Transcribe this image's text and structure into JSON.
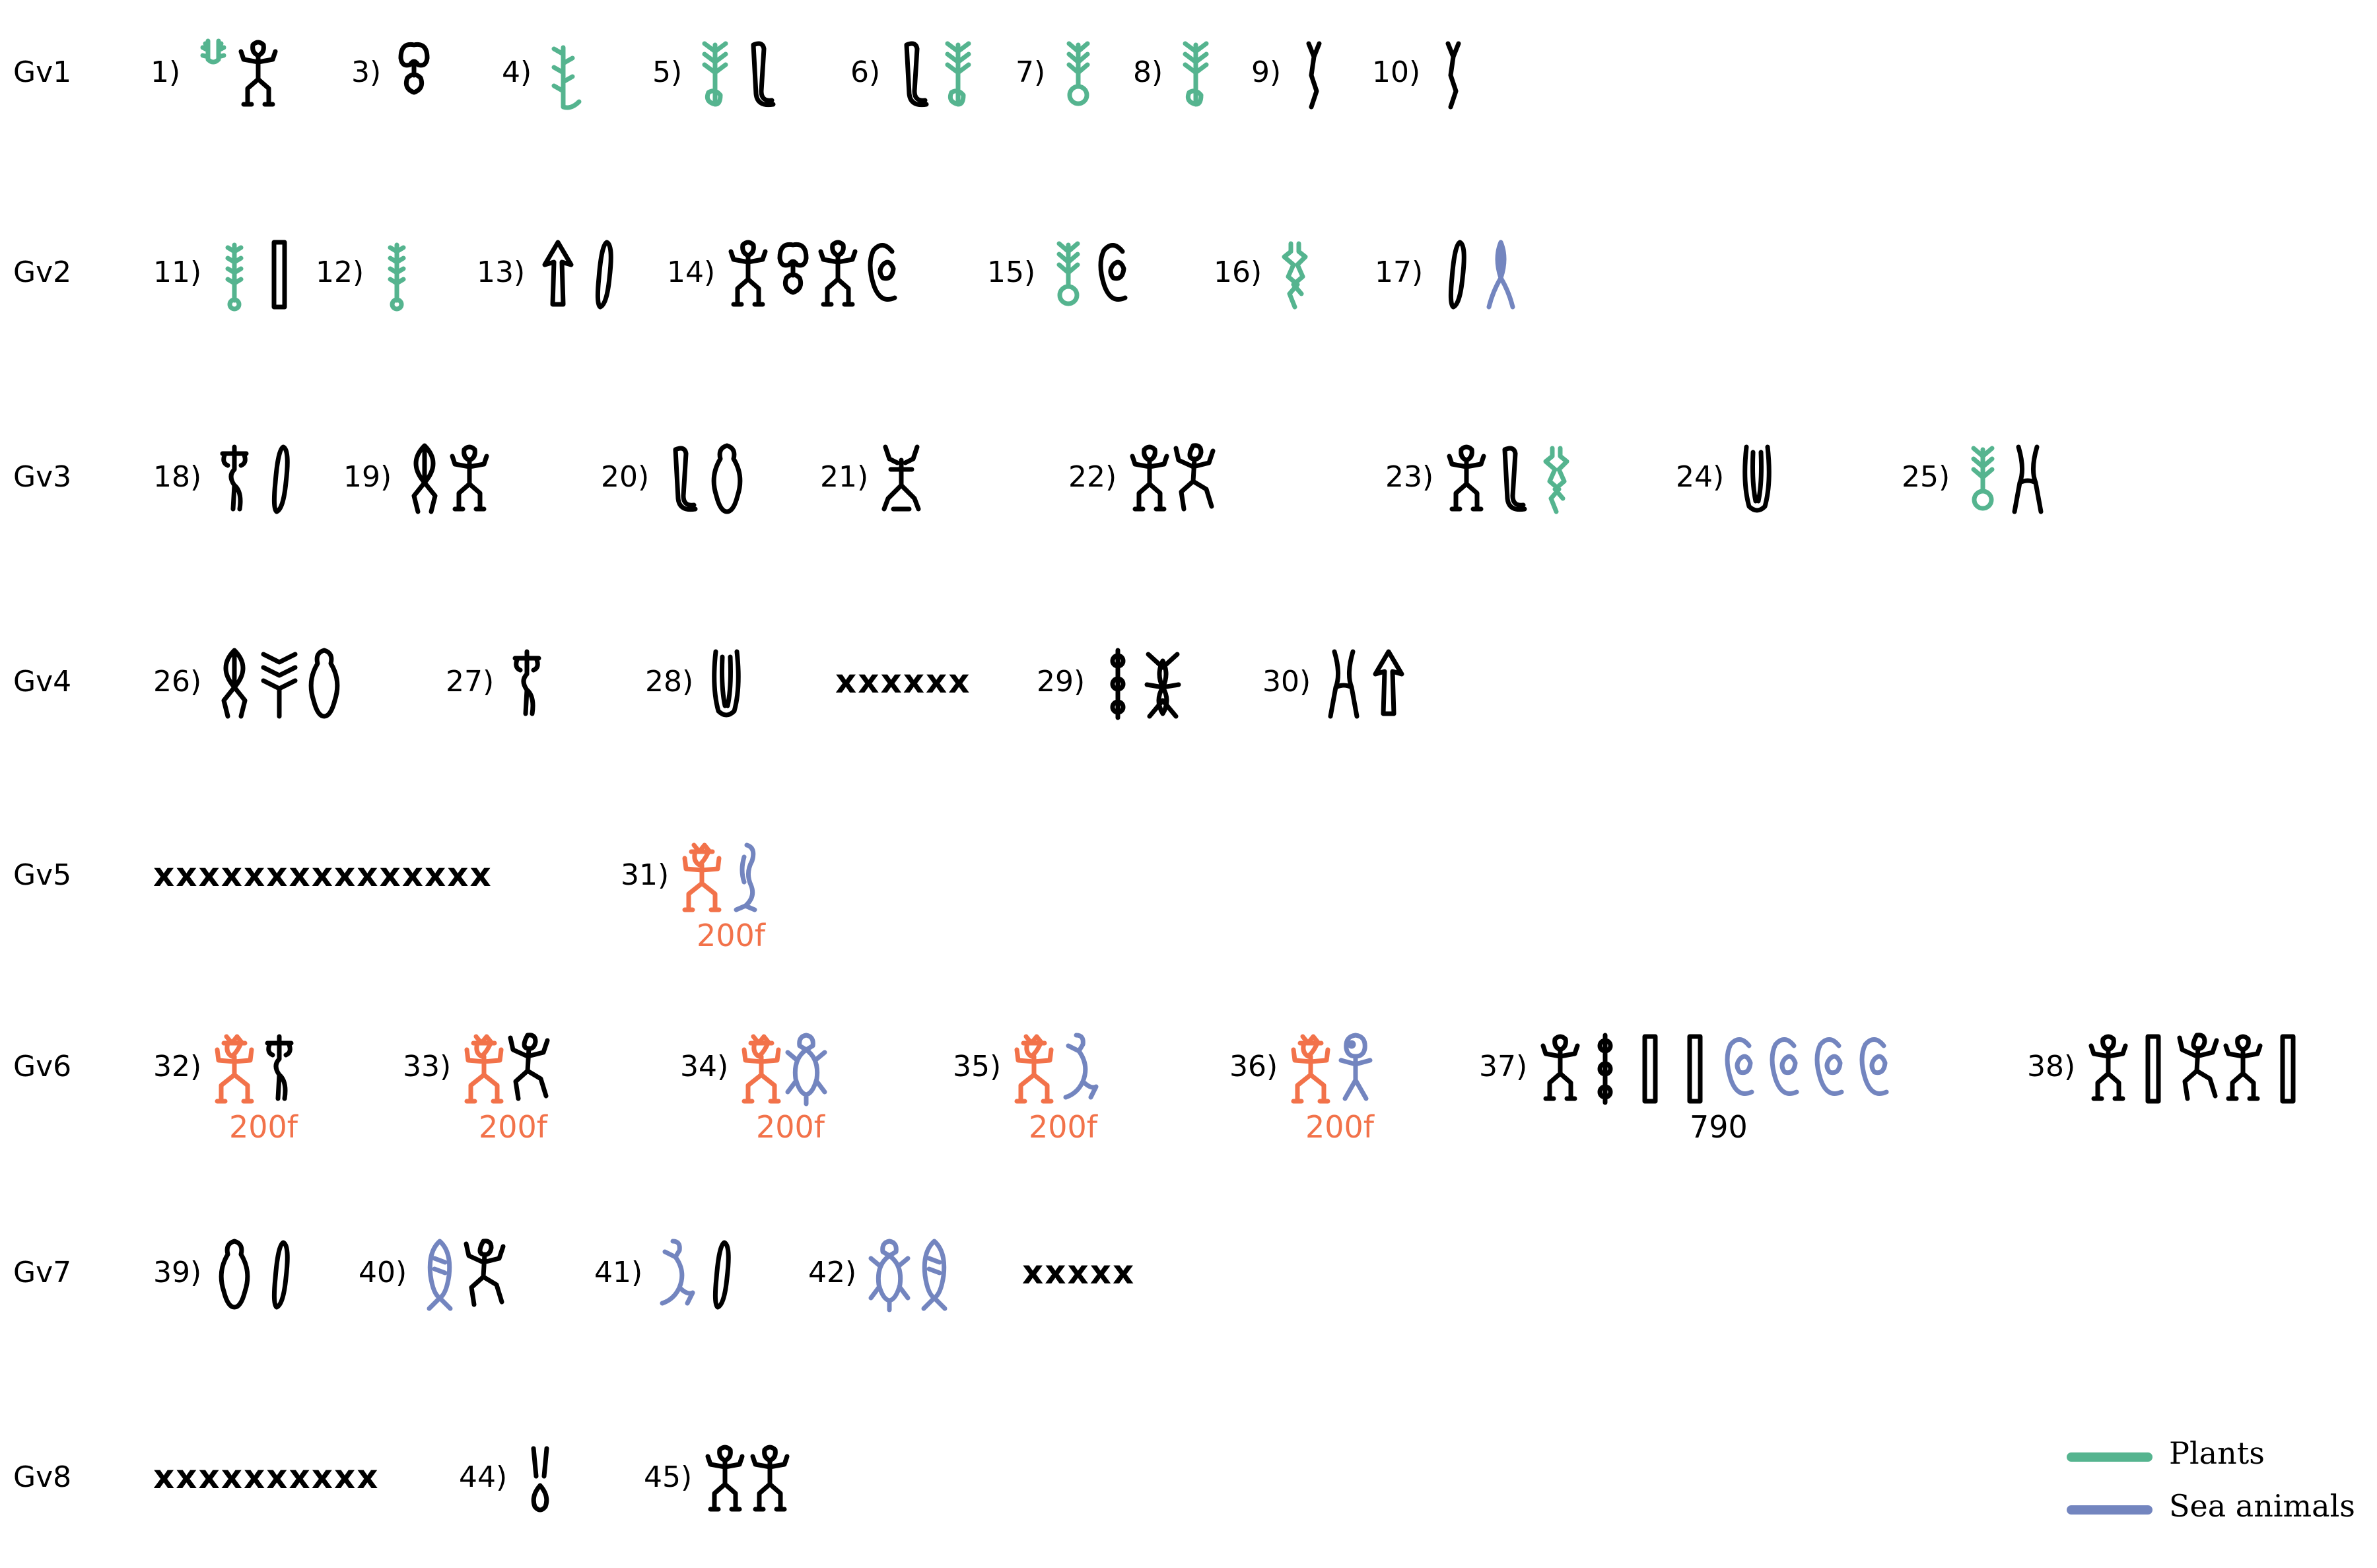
{
  "colors": {
    "plant": "#55b48f",
    "sea": "#7385bf",
    "human": "#f2724a",
    "ink": "#000000"
  },
  "legend": [
    {
      "label": "Plants",
      "color": "#55b48f"
    },
    {
      "label": "Sea animals",
      "color": "#7385bf"
    }
  ],
  "rows": [
    {
      "label": "Gv1",
      "items": [
        {
          "num": "1)",
          "glyphs": [
            {
              "shape": "sprout-pair",
              "color": "plant"
            },
            {
              "shape": "figure",
              "color": "ink"
            }
          ]
        },
        {
          "num": "3)",
          "glyphs": [
            {
              "shape": "hook-head",
              "color": "ink"
            }
          ]
        },
        {
          "num": "4)",
          "glyphs": [
            {
              "shape": "vine",
              "color": "plant"
            }
          ]
        },
        {
          "num": "5)",
          "glyphs": [
            {
              "shape": "branch",
              "color": "plant"
            },
            {
              "shape": "hook",
              "color": "ink"
            }
          ]
        },
        {
          "num": "6)",
          "glyphs": [
            {
              "shape": "hook",
              "color": "ink"
            },
            {
              "shape": "branch",
              "color": "plant"
            }
          ]
        },
        {
          "num": "7)",
          "glyphs": [
            {
              "shape": "branch-ring",
              "color": "plant"
            }
          ]
        },
        {
          "num": "8)",
          "glyphs": [
            {
              "shape": "branch",
              "color": "plant"
            }
          ]
        },
        {
          "num": "9)",
          "glyphs": [
            {
              "shape": "stick",
              "color": "ink"
            }
          ]
        },
        {
          "num": "10)",
          "glyphs": [
            {
              "shape": "stick",
              "color": "ink"
            }
          ]
        }
      ]
    },
    {
      "label": "Gv2",
      "items": [
        {
          "num": "11)",
          "glyphs": [
            {
              "shape": "stalk",
              "color": "plant"
            },
            {
              "shape": "bar",
              "color": "ink"
            }
          ]
        },
        {
          "num": "12)",
          "glyphs": [
            {
              "shape": "stalk",
              "color": "plant"
            }
          ]
        },
        {
          "num": "13)",
          "glyphs": [
            {
              "shape": "arrow-leaf",
              "color": "ink"
            },
            {
              "shape": "staff",
              "color": "ink"
            }
          ]
        },
        {
          "num": "14)",
          "glyphs": [
            {
              "shape": "figure",
              "color": "ink"
            },
            {
              "shape": "hook-head",
              "color": "ink"
            },
            {
              "shape": "figure",
              "color": "ink"
            },
            {
              "shape": "curl",
              "color": "ink"
            }
          ]
        },
        {
          "num": "15)",
          "glyphs": [
            {
              "shape": "branch-ring",
              "color": "plant"
            },
            {
              "shape": "curl",
              "color": "ink"
            }
          ]
        },
        {
          "num": "16)",
          "glyphs": [
            {
              "shape": "spine",
              "color": "plant"
            }
          ]
        },
        {
          "num": "17)",
          "glyphs": [
            {
              "shape": "staff",
              "color": "ink"
            },
            {
              "shape": "fishtail",
              "color": "sea"
            }
          ]
        }
      ]
    },
    {
      "label": "Gv3",
      "items": [
        {
          "num": "18)",
          "glyphs": [
            {
              "shape": "cross",
              "color": "ink"
            },
            {
              "shape": "staff",
              "color": "ink"
            }
          ]
        },
        {
          "num": "19)",
          "glyphs": [
            {
              "shape": "leaf",
              "color": "ink"
            },
            {
              "shape": "figure",
              "color": "ink"
            }
          ]
        },
        {
          "num": "20)",
          "glyphs": [
            {
              "shape": "hook",
              "color": "ink"
            },
            {
              "shape": "body",
              "color": "ink"
            }
          ]
        },
        {
          "num": "21)",
          "glyphs": [
            {
              "shape": "antler-figure",
              "color": "ink"
            }
          ]
        },
        {
          "num": "22)",
          "glyphs": [
            {
              "shape": "figure",
              "color": "ink"
            },
            {
              "shape": "dancer",
              "color": "ink"
            }
          ]
        },
        {
          "num": "23)",
          "glyphs": [
            {
              "shape": "figure",
              "color": "ink"
            },
            {
              "shape": "hook",
              "color": "ink"
            },
            {
              "shape": "spine",
              "color": "plant"
            }
          ]
        },
        {
          "num": "24)",
          "glyphs": [
            {
              "shape": "u-shape",
              "color": "ink"
            }
          ]
        },
        {
          "num": "25)",
          "glyphs": [
            {
              "shape": "branch-ring",
              "color": "plant"
            },
            {
              "shape": "fork",
              "color": "ink"
            }
          ]
        }
      ]
    },
    {
      "label": "Gv4",
      "items": [
        {
          "num": "26)",
          "glyphs": [
            {
              "shape": "leaf",
              "color": "ink"
            },
            {
              "shape": "zigzag",
              "color": "ink"
            },
            {
              "shape": "body",
              "color": "ink"
            }
          ]
        },
        {
          "num": "27)",
          "glyphs": [
            {
              "shape": "cross",
              "color": "ink"
            }
          ]
        },
        {
          "num": "28)",
          "glyphs": [
            {
              "shape": "u-shape",
              "color": "ink"
            }
          ]
        },
        {
          "mark": "xxxxxx"
        },
        {
          "num": "29)",
          "glyphs": [
            {
              "shape": "beads",
              "color": "ink"
            },
            {
              "shape": "insect",
              "color": "ink"
            }
          ]
        },
        {
          "num": "30)",
          "glyphs": [
            {
              "shape": "fork",
              "color": "ink"
            },
            {
              "shape": "arrow-leaf",
              "color": "ink"
            }
          ]
        }
      ]
    },
    {
      "label": "Gv5",
      "items": [
        {
          "mark": "xxxxxxxxxxxxxxx"
        },
        {
          "num": "31)",
          "glyphs": [
            {
              "shape": "human",
              "color": "human"
            },
            {
              "shape": "eel",
              "color": "sea"
            }
          ],
          "note": "200f",
          "noteColor": "human"
        }
      ]
    },
    {
      "label": "Gv6",
      "items": [
        {
          "num": "32)",
          "glyphs": [
            {
              "shape": "human",
              "color": "human"
            },
            {
              "shape": "cross",
              "color": "ink"
            }
          ],
          "note": "200f",
          "noteColor": "human"
        },
        {
          "num": "33)",
          "glyphs": [
            {
              "shape": "human",
              "color": "human"
            },
            {
              "shape": "dancer",
              "color": "ink"
            }
          ],
          "note": "200f",
          "noteColor": "human"
        },
        {
          "num": "34)",
          "glyphs": [
            {
              "shape": "human",
              "color": "human"
            },
            {
              "shape": "turtle",
              "color": "sea"
            }
          ],
          "note": "200f",
          "noteColor": "human"
        },
        {
          "num": "35)",
          "glyphs": [
            {
              "shape": "human",
              "color": "human"
            },
            {
              "shape": "mermaid",
              "color": "sea"
            }
          ],
          "note": "200f",
          "noteColor": "human"
        },
        {
          "num": "36)",
          "glyphs": [
            {
              "shape": "human",
              "color": "human"
            },
            {
              "shape": "fishman",
              "color": "sea"
            }
          ],
          "note": "200f",
          "noteColor": "human"
        },
        {
          "num": "37)",
          "glyphs": [
            {
              "shape": "figure",
              "color": "ink"
            },
            {
              "shape": "beads",
              "color": "ink"
            },
            {
              "shape": "bar",
              "color": "ink"
            },
            {
              "shape": "bar",
              "color": "ink"
            },
            {
              "shape": "curl",
              "color": "sea"
            },
            {
              "shape": "curl",
              "color": "sea"
            },
            {
              "shape": "curl",
              "color": "sea"
            },
            {
              "shape": "curl",
              "color": "sea"
            }
          ],
          "note": "790",
          "noteColor": "ink"
        },
        {
          "num": "38)",
          "glyphs": [
            {
              "shape": "figure",
              "color": "ink"
            },
            {
              "shape": "bar",
              "color": "ink"
            },
            {
              "shape": "dancer",
              "color": "ink"
            },
            {
              "shape": "figure",
              "color": "ink"
            },
            {
              "shape": "bar",
              "color": "ink"
            }
          ]
        }
      ]
    },
    {
      "label": "Gv7",
      "items": [
        {
          "num": "39)",
          "glyphs": [
            {
              "shape": "body",
              "color": "ink"
            },
            {
              "shape": "staff",
              "color": "ink"
            }
          ]
        },
        {
          "num": "40)",
          "glyphs": [
            {
              "shape": "fish",
              "color": "sea"
            },
            {
              "shape": "dancer",
              "color": "ink"
            }
          ]
        },
        {
          "num": "41)",
          "glyphs": [
            {
              "shape": "mermaid",
              "color": "sea"
            },
            {
              "shape": "staff",
              "color": "ink"
            }
          ]
        },
        {
          "num": "42)",
          "glyphs": [
            {
              "shape": "turtle",
              "color": "sea"
            },
            {
              "shape": "fish",
              "color": "sea"
            }
          ]
        },
        {
          "mark": "xxxxx"
        }
      ]
    },
    {
      "label": "Gv8",
      "items": [
        {
          "mark": "xxxxxxxxxx"
        },
        {
          "num": "44)",
          "glyphs": [
            {
              "shape": "drop",
              "color": "ink"
            }
          ]
        },
        {
          "num": "45)",
          "glyphs": [
            {
              "shape": "figure",
              "color": "ink"
            },
            {
              "shape": "figure",
              "color": "ink"
            }
          ]
        }
      ]
    }
  ]
}
